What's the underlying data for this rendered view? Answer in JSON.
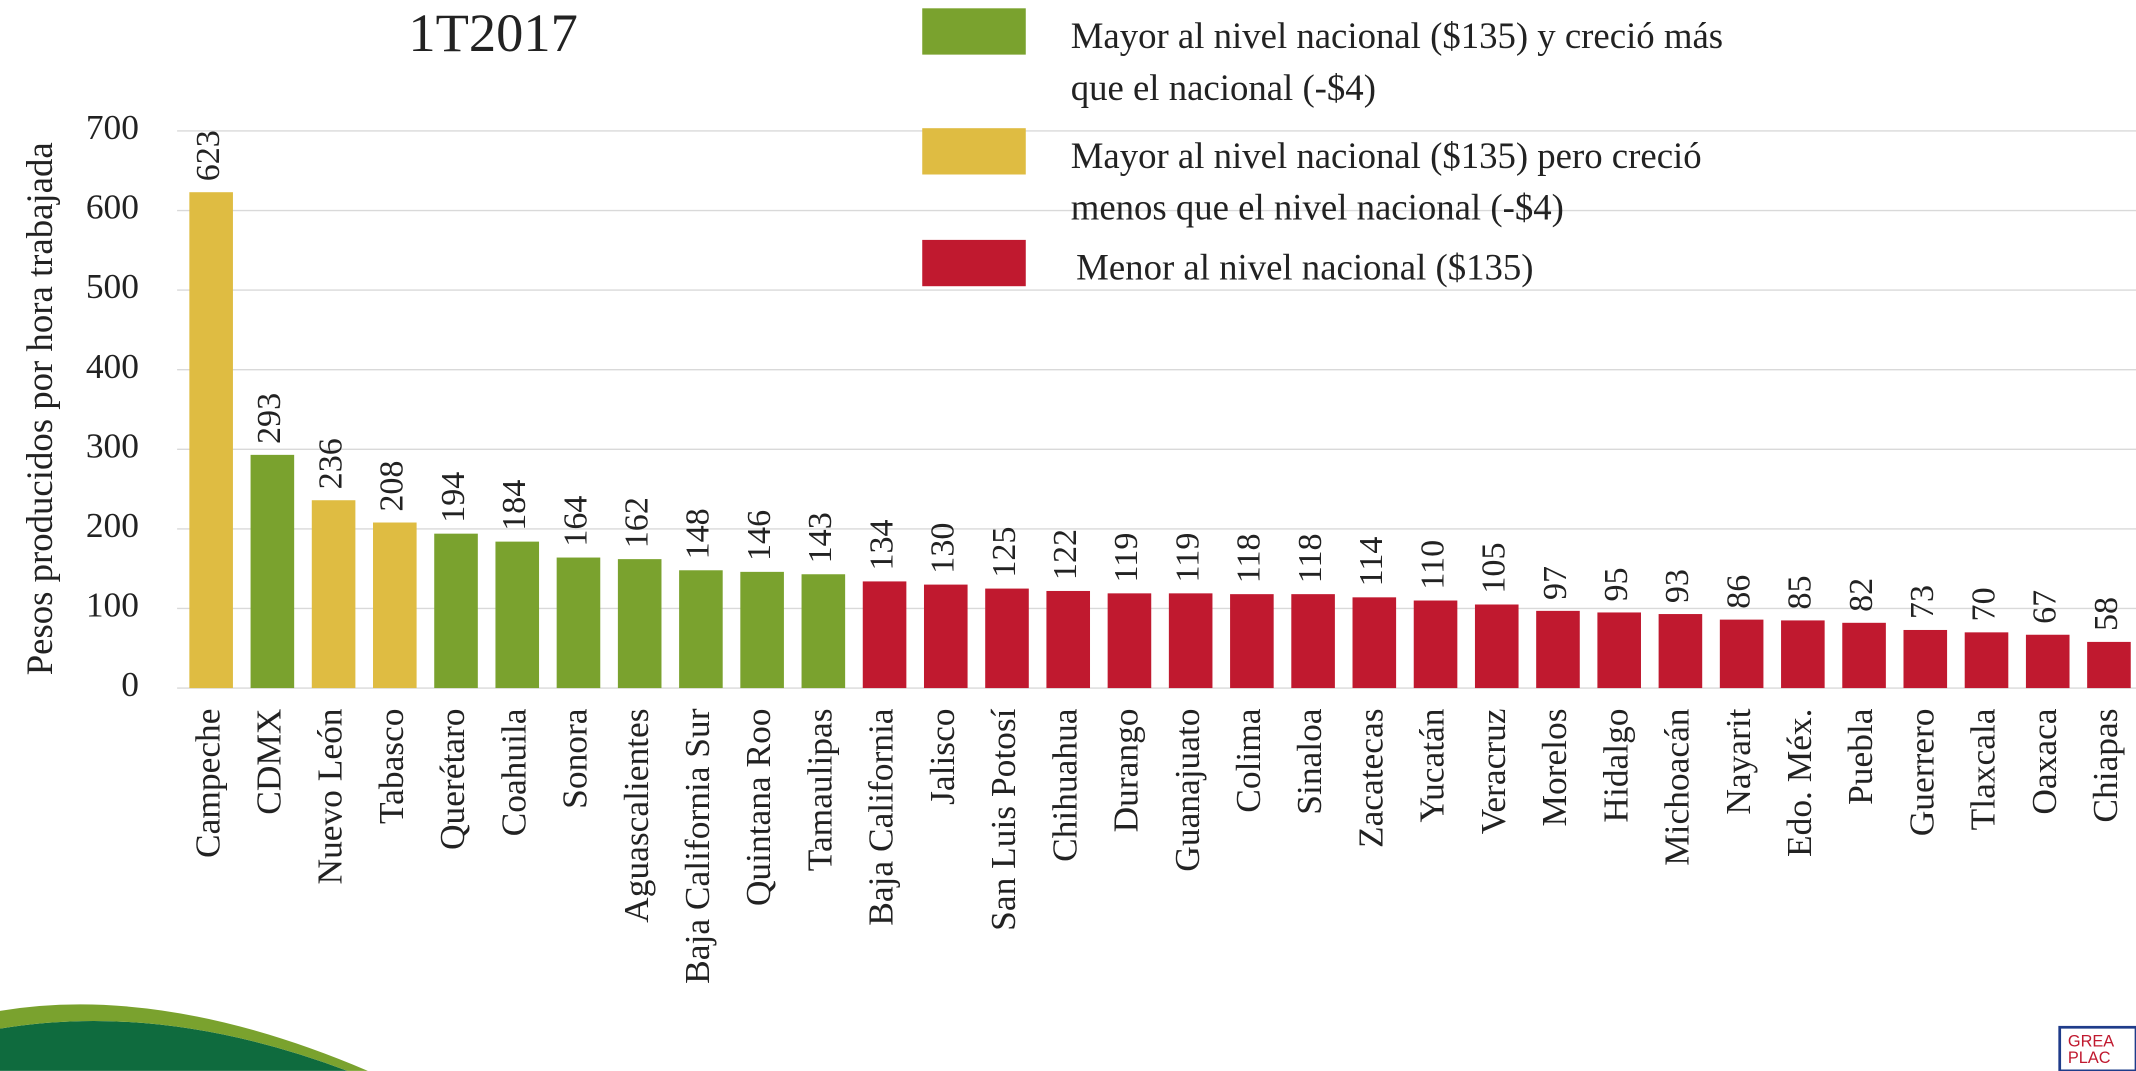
{
  "chart_data": {
    "type": "bar",
    "title": "1T2017",
    "y_label": "Pesos producidos por hora trabajada",
    "categories": [
      "Campeche",
      "CDMX",
      "Nuevo León",
      "Tabasco",
      "Querétaro",
      "Coahuila",
      "Sonora",
      "Aguascalientes",
      "Baja California Sur",
      "Quintana Roo",
      "Tamaulipas",
      "Baja California",
      "Jalisco",
      "San Luis Potosí",
      "Chihuahua",
      "Durango",
      "Guanajuato",
      "Colima",
      "Sinaloa",
      "Zacatecas",
      "Yucatán",
      "Veracruz",
      "Morelos",
      "Hidalgo",
      "Michoacán",
      "Nayarit",
      "Edo. Méx.",
      "Puebla",
      "Guerrero",
      "Tlaxcala",
      "Oaxaca",
      "Chiapas"
    ],
    "values": [
      623,
      293,
      236,
      208,
      194,
      184,
      164,
      162,
      148,
      146,
      143,
      134,
      130,
      125,
      122,
      119,
      119,
      118,
      118,
      114,
      110,
      105,
      97,
      95,
      93,
      86,
      85,
      82,
      73,
      70,
      67,
      58
    ],
    "colors": [
      "#dfbc42",
      "#7aa22e",
      "#dfbc42",
      "#dfbc42",
      "#7aa22e",
      "#7aa22e",
      "#7aa22e",
      "#7aa22e",
      "#7aa22e",
      "#7aa22e",
      "#7aa22e",
      "#c0192f",
      "#c0192f",
      "#c0192f",
      "#c0192f",
      "#c0192f",
      "#c0192f",
      "#c0192f",
      "#c0192f",
      "#c0192f",
      "#c0192f",
      "#c0192f",
      "#c0192f",
      "#c0192f",
      "#c0192f",
      "#c0192f",
      "#c0192f",
      "#c0192f",
      "#c0192f",
      "#c0192f",
      "#c0192f",
      "#c0192f"
    ],
    "ylim": [
      0,
      700
    ],
    "yticks": [
      0,
      100,
      200,
      300,
      400,
      500,
      600,
      700
    ],
    "grid": true,
    "legend": [
      {
        "lines": [
          "Mayor al nivel nacional ($135) y creció más",
          "que el nacional (-$4)"
        ],
        "color": "#7aa22e"
      },
      {
        "lines": [
          "Mayor al nivel nacional ($135) pero creció",
          "menos que el nivel nacional (-$4)"
        ],
        "color": "#dfbc42"
      },
      {
        "lines": [
          "Menor al nivel nacional ($135)"
        ],
        "color": "#c0192f"
      }
    ],
    "logo_lines": [
      "GREA",
      "PLAC"
    ]
  }
}
